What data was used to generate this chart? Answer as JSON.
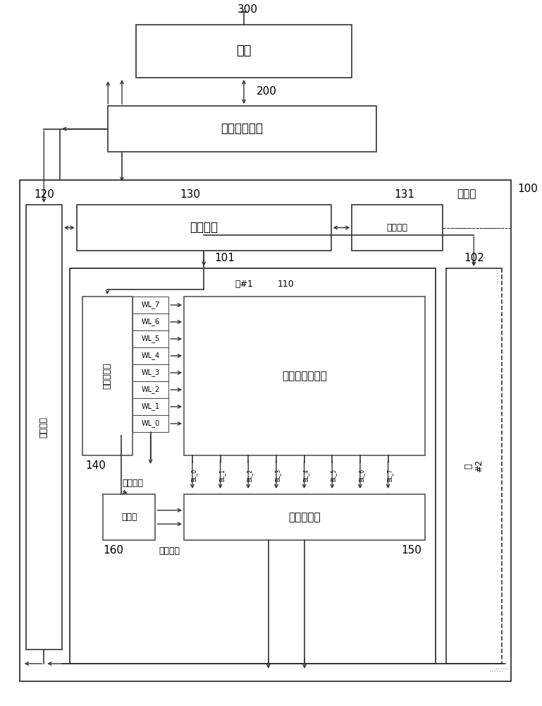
{
  "title_host": "主机",
  "label_300": "300",
  "title_mem_ctrl": "存储器控制器",
  "label_200": "200",
  "label_100": "100",
  "label_storage": "存储器",
  "title_ctrl": "控制部分",
  "label_130": "130",
  "title_cmdq": "命令队列",
  "label_131": "131",
  "label_101": "101",
  "label_102": "102",
  "label_block1": "块#1",
  "label_110": "110",
  "label_140": "140",
  "title_wl_dec": "字线译码器",
  "title_cell_array": "存储器单元阵列",
  "wl_labels": [
    "WL_7",
    "WL_6",
    "WL_5",
    "WL_4",
    "WL_3",
    "WL_2",
    "WL_1",
    "WL_0"
  ],
  "bl_labels": [
    "BL_0",
    "BL_1",
    "BL_2",
    "BL_3",
    "BL_4",
    "BL_5",
    "BL_6",
    "BL_7"
  ],
  "title_bl_sel": "位线选择器",
  "label_150": "150",
  "title_driver": "驱动器",
  "label_160": "160",
  "label_ctrl_iface": "控制接口",
  "label_120": "120",
  "label_base_volt": "基板电压",
  "label_bl_volt": "位线电压",
  "label_block2": "块\n#2"
}
